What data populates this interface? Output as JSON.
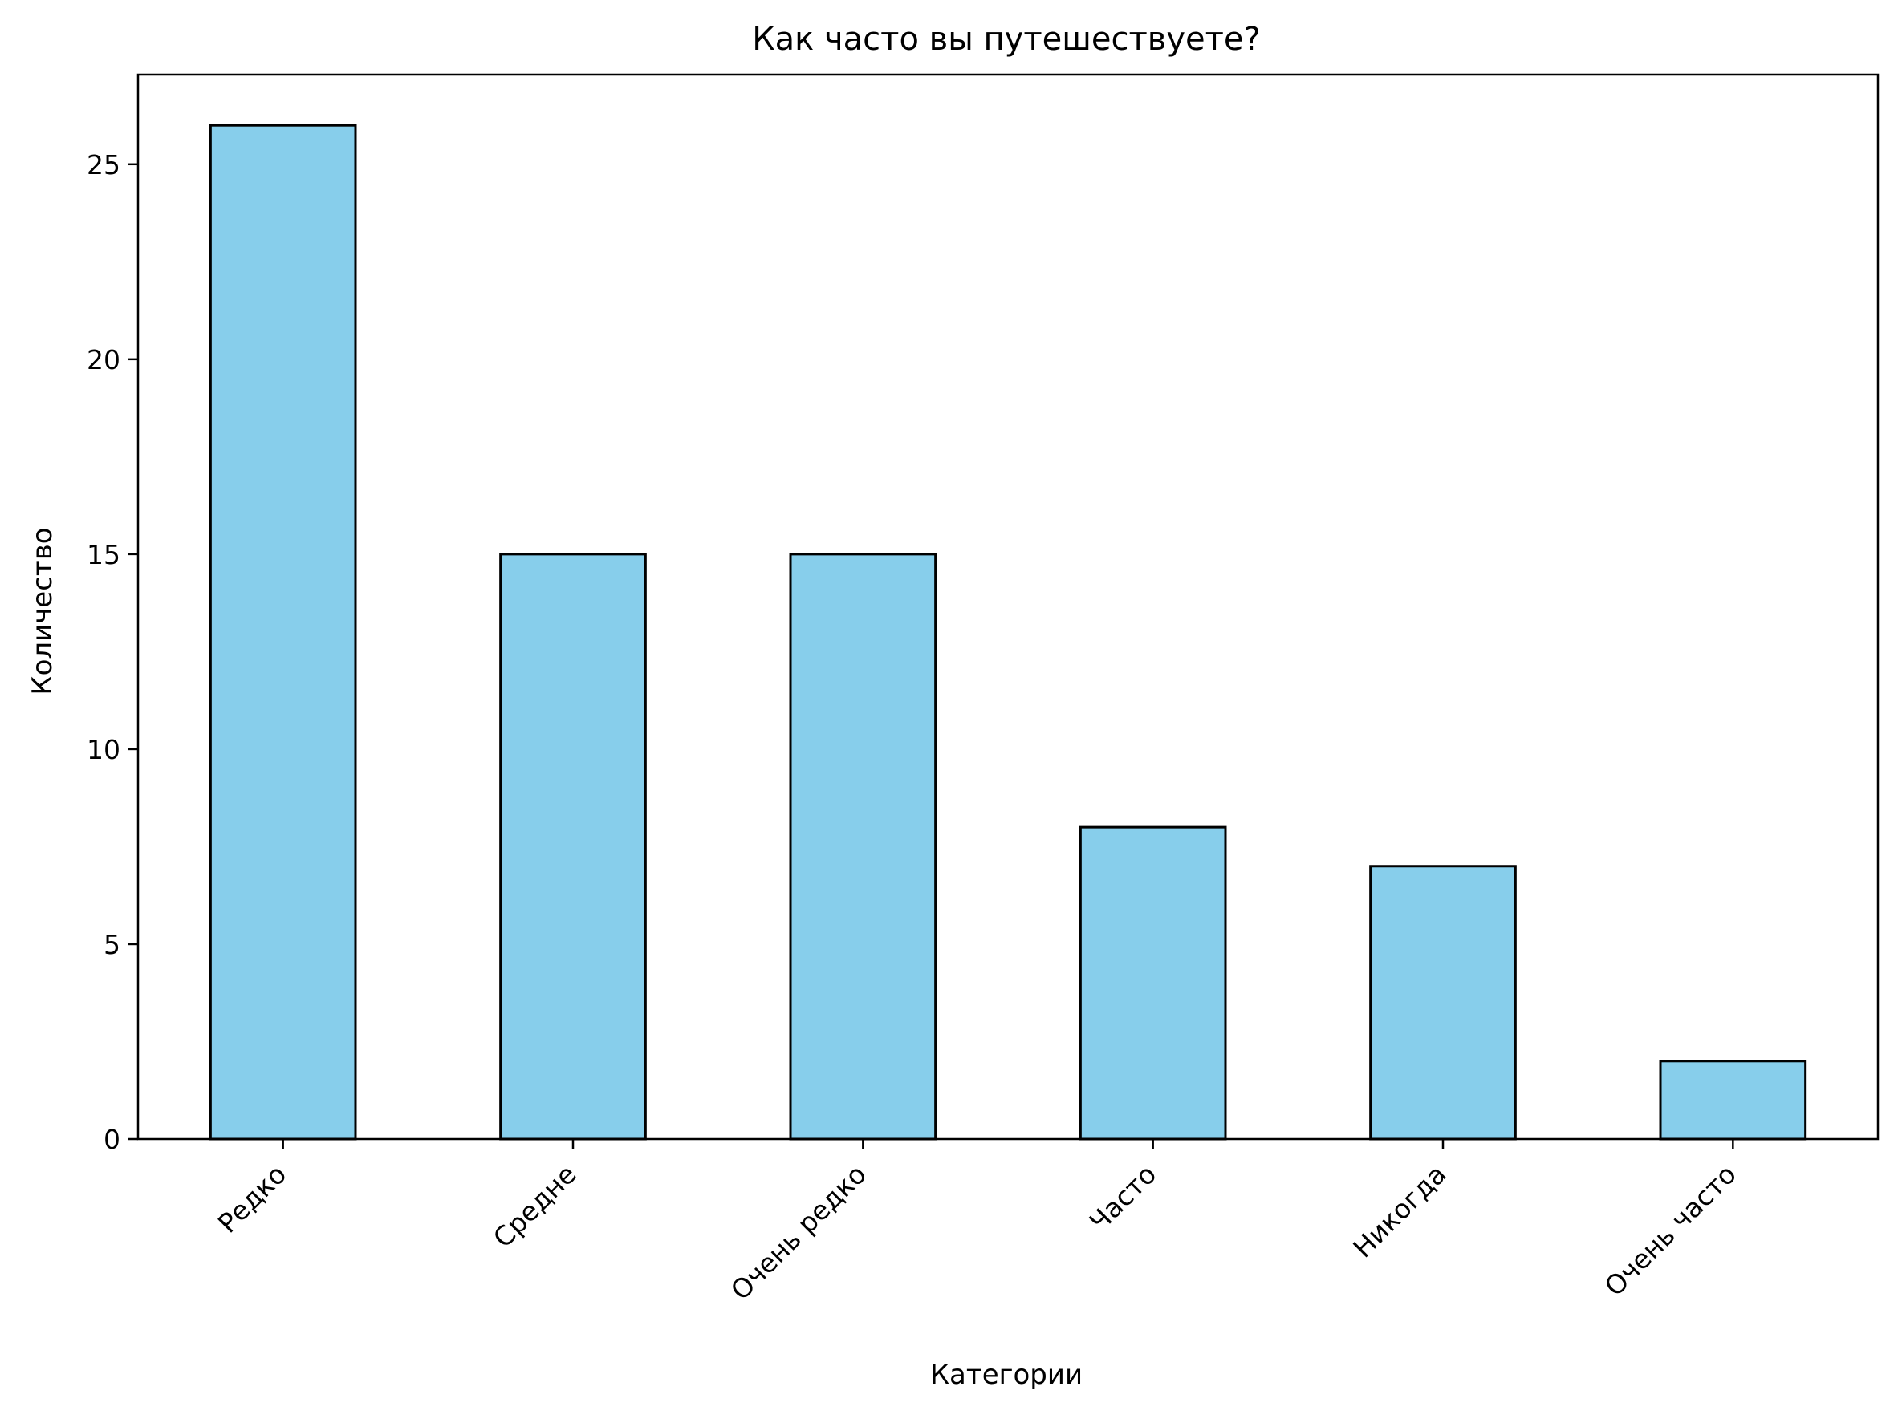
{
  "chart_data": {
    "type": "bar",
    "title": "Как часто вы путешествуете?",
    "xlabel": "Категории",
    "ylabel": "Количество",
    "categories": [
      "Редко",
      "Средне",
      "Очень редко",
      "Часто",
      "Никогда",
      "Очень часто"
    ],
    "values": [
      26,
      15,
      15,
      8,
      7,
      2
    ],
    "ylim": [
      0,
      27.3
    ],
    "yticks": [
      0,
      5,
      10,
      15,
      20,
      25
    ],
    "ytick_labels": [
      "0",
      "5",
      "10",
      "15",
      "20",
      "25"
    ],
    "bar_color": "#87CEEB",
    "edge_color": "#000000",
    "grid": false,
    "legend": false
  }
}
